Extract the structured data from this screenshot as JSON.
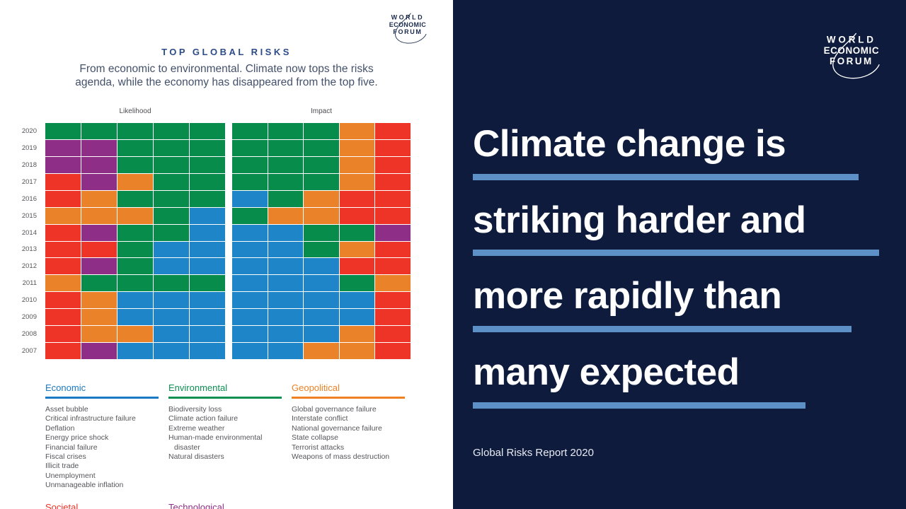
{
  "brand": {
    "logo_lines": [
      "WORLD",
      "ECONOMIC",
      "FORUM"
    ]
  },
  "infographic": {
    "title": "TOP GLOBAL RISKS",
    "subtitle_lines": [
      "From economic to environmental. Climate now tops the risks",
      "agenda, while the economy has disappeared from the top five."
    ]
  },
  "chart_data": {
    "type": "heatmap",
    "title": "TOP GLOBAL RISKS",
    "description": "Top 5 global risks each year (2007-2020), one cell per ranked risk, colored by risk category",
    "panels": [
      "Likelihood",
      "Impact"
    ],
    "years": [
      "2020",
      "2019",
      "2018",
      "2017",
      "2016",
      "2015",
      "2014",
      "2013",
      "2012",
      "2011",
      "2010",
      "2009",
      "2008",
      "2007"
    ],
    "columns_per_panel": 5,
    "palette": {
      "G": "#088c4c",
      "B": "#1e86c8",
      "R": "#ee3327",
      "O": "#ea8229",
      "P": "#8e2e87"
    },
    "categories_by_code": {
      "G": "environmental",
      "B": "economic",
      "R": "societal",
      "O": "geopolitical",
      "P": "technological"
    },
    "rows": {
      "likelihood": [
        "GGGGG",
        "PPGGG",
        "PPGGG",
        "RPOGG",
        "ROGGG",
        "OOOGB",
        "RPGGB",
        "RRGBB",
        "RPGBB",
        "OGGGG",
        "ROBBB",
        "ROBBB",
        "ROOBB",
        "RPBBB"
      ],
      "impact": [
        "GGGOR",
        "GGGOR",
        "GGGOR",
        "GGGOR",
        "BGORR",
        "GOORR",
        "BBGGP",
        "BBGOR",
        "BBBRR",
        "BBBGO",
        "BBBBR",
        "BBBBR",
        "BBBOR",
        "BBOOR"
      ]
    },
    "legend_position": "bottom",
    "grid": "faint white separators"
  },
  "legend": {
    "columns": [
      {
        "label": "Economic",
        "color": "#1a7ac4",
        "items": [
          "Asset bubble",
          "Critical infrastructure failure",
          "Deflation",
          "Energy price shock",
          "Financial failure",
          "Fiscal crises",
          "Illicit trade",
          "Unemployment",
          "Unmanageable inflation"
        ]
      },
      {
        "label": "Environmental",
        "color": "#0c9051",
        "items": [
          "Biodiversity loss",
          "Climate action failure",
          "Extreme weather",
          "Human-made environmental disaster",
          "Natural disasters"
        ]
      },
      {
        "label": "Geopolitical",
        "color": "#ef8023",
        "items": [
          "Global governance failure",
          "Interstate conflict",
          "National governance failure",
          "State collapse",
          "Terrorist attacks",
          "Weapons of mass destruction"
        ]
      }
    ],
    "partial_row": [
      {
        "label": "Societal",
        "color": "#ee3124"
      },
      {
        "label": "Technological",
        "color": "#8e2e87"
      }
    ]
  },
  "poster": {
    "headline_lines": [
      "Climate change is",
      "striking harder and",
      "more rapidly than",
      "many expected"
    ],
    "underline_widths": [
      545,
      574,
      535,
      470
    ],
    "underline_color": "#5e90c8",
    "background": "#0e1b3d",
    "source": "Global Risks Report 2020"
  }
}
